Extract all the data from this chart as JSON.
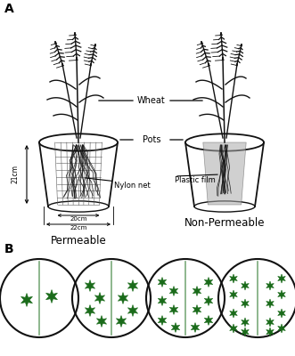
{
  "panel_A_label": "A",
  "panel_B_label": "B",
  "label_permeable": "Permeable",
  "label_non_permeable": "Non-Permeable",
  "label_wheat": "Wheat",
  "label_pots": "Pots",
  "label_nylon": "Nylon net",
  "label_plastic": "Plastic film",
  "dim_21cm": "21cm",
  "dim_20cm": "20cm",
  "dim_22cm": "22cm",
  "plant_color": "#111111",
  "root_color": "#111111",
  "pot_color": "#111111",
  "net_color": "#555555",
  "film_color": "#aaaaaa",
  "green_color": "#1a6b1a",
  "circle_color": "#111111",
  "divider_color": "#7aaa7a",
  "background": "#ffffff",
  "fig_w": 3.31,
  "fig_h": 4.0,
  "dpi": 100
}
